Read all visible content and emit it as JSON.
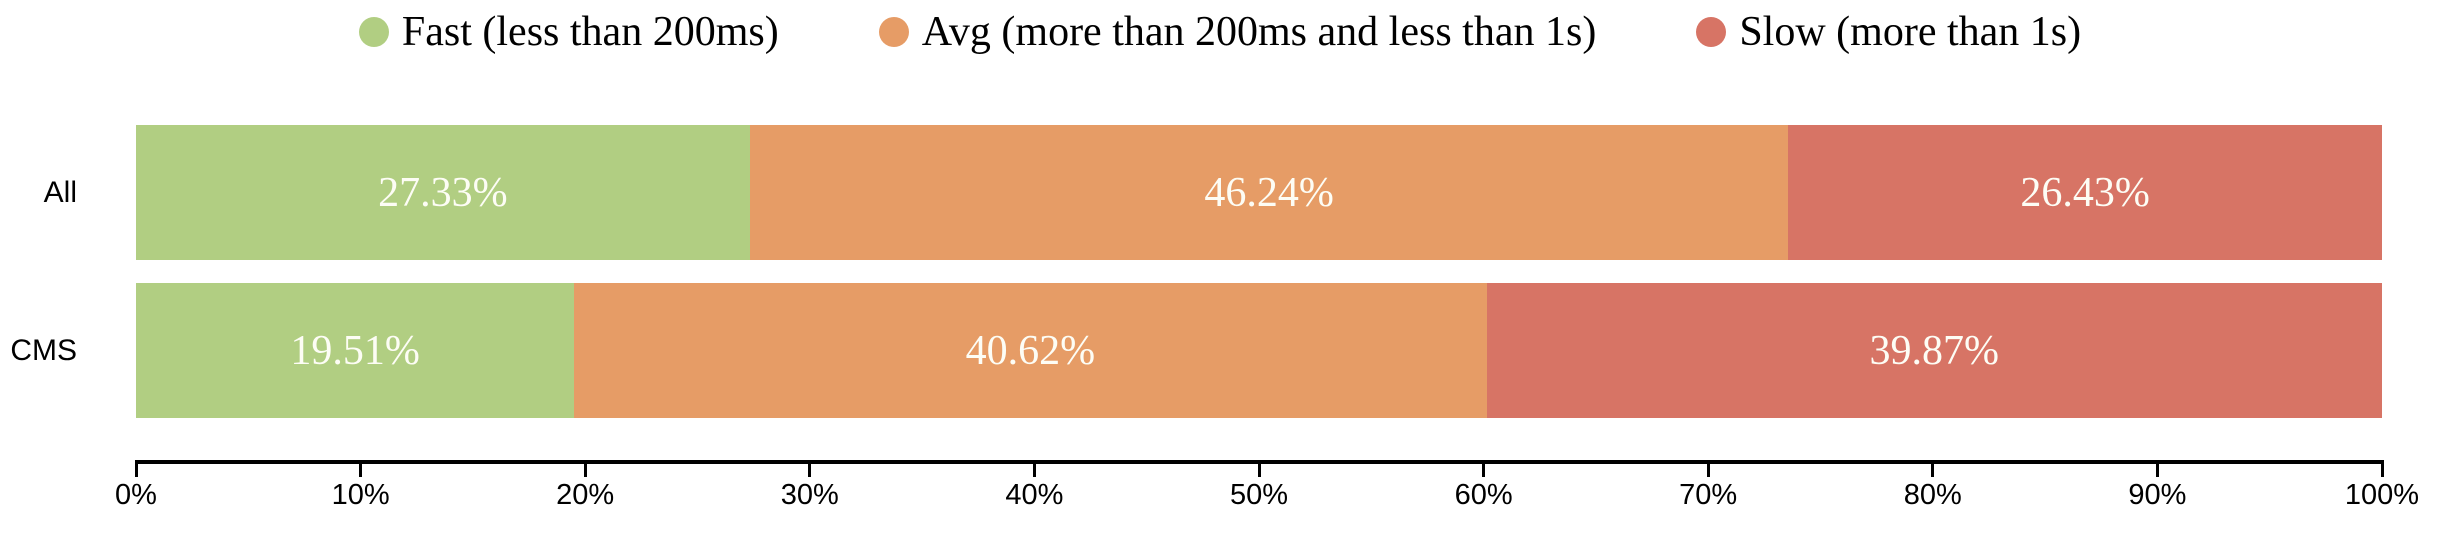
{
  "chart_data": {
    "type": "bar",
    "orientation": "horizontal",
    "stacked": true,
    "unit": "%",
    "title": "",
    "xlabel": "",
    "ylabel": "",
    "grid": false,
    "legend_position": "top",
    "categories": [
      "All",
      "CMS"
    ],
    "series": [
      {
        "name": "Fast (less than 200ms)",
        "key": "fast",
        "color": "#b1ce82",
        "values": [
          27.33,
          19.51
        ],
        "value_labels": [
          "27.33%",
          "19.51%"
        ]
      },
      {
        "name": "Avg (more than 200ms and less than 1s)",
        "key": "avg",
        "color": "#e69c66",
        "values": [
          46.24,
          40.62
        ],
        "value_labels": [
          "46.24%",
          "40.62%"
        ]
      },
      {
        "name": "Slow (more than 1s)",
        "key": "slow",
        "color": "#d77465",
        "values": [
          26.43,
          39.87
        ],
        "value_labels": [
          "26.43%",
          "39.87%"
        ]
      }
    ],
    "x_axis": {
      "min": 0,
      "max": 100,
      "tick_labels": [
        "0%",
        "10%",
        "20%",
        "30%",
        "40%",
        "50%",
        "60%",
        "70%",
        "80%",
        "90%",
        "100%"
      ]
    },
    "colors": {
      "value_label": "#fdfdf5",
      "axis": "#000000",
      "text": "#000000"
    }
  }
}
